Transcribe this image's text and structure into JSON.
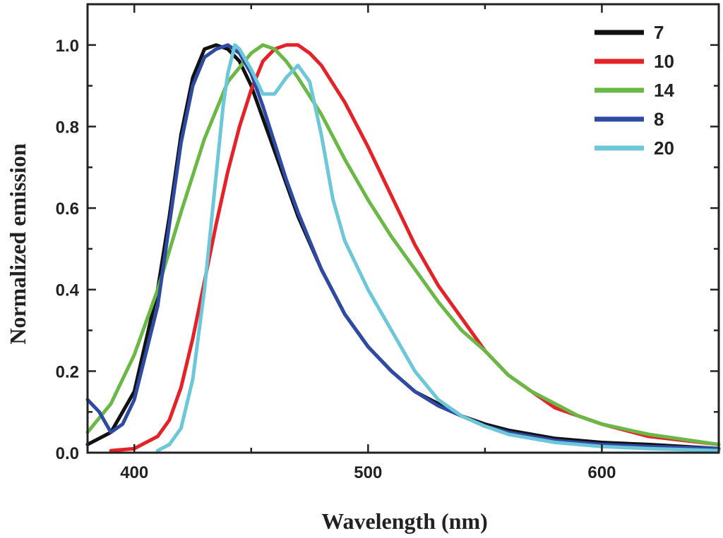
{
  "chart_data": {
    "type": "line",
    "xlabel": "Wavelength (nm)",
    "ylabel": "Normalized emission",
    "xlim": [
      380,
      650
    ],
    "ylim": [
      0,
      1.1
    ],
    "xticks": [
      400,
      500,
      600
    ],
    "xtick_labels": [
      "400",
      "500",
      "600"
    ],
    "yticks": [
      0.0,
      0.2,
      0.4,
      0.6,
      0.8,
      1.0
    ],
    "ytick_labels": [
      "0.0",
      "0.2",
      "0.4",
      "0.6",
      "0.8",
      "1.0"
    ],
    "legend_position": "top-right",
    "series": [
      {
        "name": "7",
        "color": "#111111",
        "x": [
          380,
          390,
          400,
          410,
          415,
          420,
          425,
          430,
          435,
          440,
          445,
          450,
          455,
          460,
          465,
          470,
          480,
          490,
          500,
          510,
          520,
          530,
          540,
          550,
          560,
          570,
          580,
          600,
          620,
          650
        ],
        "y": [
          0.02,
          0.05,
          0.15,
          0.4,
          0.58,
          0.78,
          0.92,
          0.99,
          1.0,
          0.99,
          0.96,
          0.9,
          0.82,
          0.74,
          0.66,
          0.58,
          0.45,
          0.34,
          0.26,
          0.2,
          0.15,
          0.12,
          0.09,
          0.07,
          0.055,
          0.045,
          0.035,
          0.025,
          0.02,
          0.01
        ]
      },
      {
        "name": "10",
        "color": "#e52228",
        "x": [
          390,
          400,
          410,
          415,
          420,
          425,
          430,
          435,
          440,
          445,
          450,
          455,
          460,
          465,
          470,
          475,
          480,
          490,
          500,
          510,
          520,
          530,
          540,
          550,
          560,
          570,
          580,
          600,
          620,
          650
        ],
        "y": [
          0.005,
          0.01,
          0.04,
          0.08,
          0.16,
          0.28,
          0.42,
          0.56,
          0.69,
          0.8,
          0.89,
          0.96,
          0.99,
          1.0,
          1.0,
          0.98,
          0.95,
          0.86,
          0.75,
          0.63,
          0.51,
          0.41,
          0.33,
          0.25,
          0.19,
          0.15,
          0.11,
          0.07,
          0.04,
          0.02
        ]
      },
      {
        "name": "14",
        "color": "#6ab845",
        "x": [
          380,
          390,
          400,
          410,
          420,
          430,
          440,
          450,
          455,
          460,
          465,
          470,
          480,
          490,
          500,
          510,
          520,
          530,
          540,
          550,
          560,
          570,
          580,
          590,
          600,
          620,
          650
        ],
        "y": [
          0.05,
          0.12,
          0.24,
          0.4,
          0.59,
          0.77,
          0.91,
          0.98,
          1.0,
          0.99,
          0.96,
          0.92,
          0.83,
          0.72,
          0.62,
          0.53,
          0.45,
          0.37,
          0.3,
          0.25,
          0.19,
          0.15,
          0.12,
          0.09,
          0.07,
          0.045,
          0.02
        ]
      },
      {
        "name": "8",
        "color": "#2e4aa3",
        "x": [
          380,
          385,
          390,
          395,
          400,
          410,
          415,
          420,
          425,
          430,
          435,
          440,
          445,
          450,
          455,
          460,
          465,
          470,
          480,
          490,
          500,
          510,
          520,
          530,
          540,
          550,
          560,
          570,
          580,
          600,
          620,
          650
        ],
        "y": [
          0.13,
          0.1,
          0.05,
          0.07,
          0.13,
          0.36,
          0.56,
          0.76,
          0.9,
          0.97,
          0.99,
          1.0,
          0.98,
          0.93,
          0.85,
          0.76,
          0.67,
          0.59,
          0.45,
          0.34,
          0.26,
          0.2,
          0.15,
          0.115,
          0.09,
          0.065,
          0.05,
          0.04,
          0.03,
          0.02,
          0.015,
          0.01
        ]
      },
      {
        "name": "20",
        "color": "#6cc7d9",
        "x": [
          410,
          415,
          420,
          425,
          430,
          435,
          438,
          440,
          443,
          445,
          450,
          455,
          460,
          465,
          470,
          475,
          480,
          485,
          490,
          500,
          510,
          520,
          530,
          540,
          550,
          560,
          570,
          580,
          600,
          620,
          650
        ],
        "y": [
          0.005,
          0.02,
          0.06,
          0.18,
          0.4,
          0.68,
          0.85,
          0.93,
          1.0,
          0.99,
          0.94,
          0.88,
          0.88,
          0.92,
          0.95,
          0.91,
          0.78,
          0.62,
          0.52,
          0.4,
          0.3,
          0.2,
          0.13,
          0.09,
          0.065,
          0.045,
          0.035,
          0.025,
          0.015,
          0.01,
          0.005
        ]
      }
    ]
  }
}
